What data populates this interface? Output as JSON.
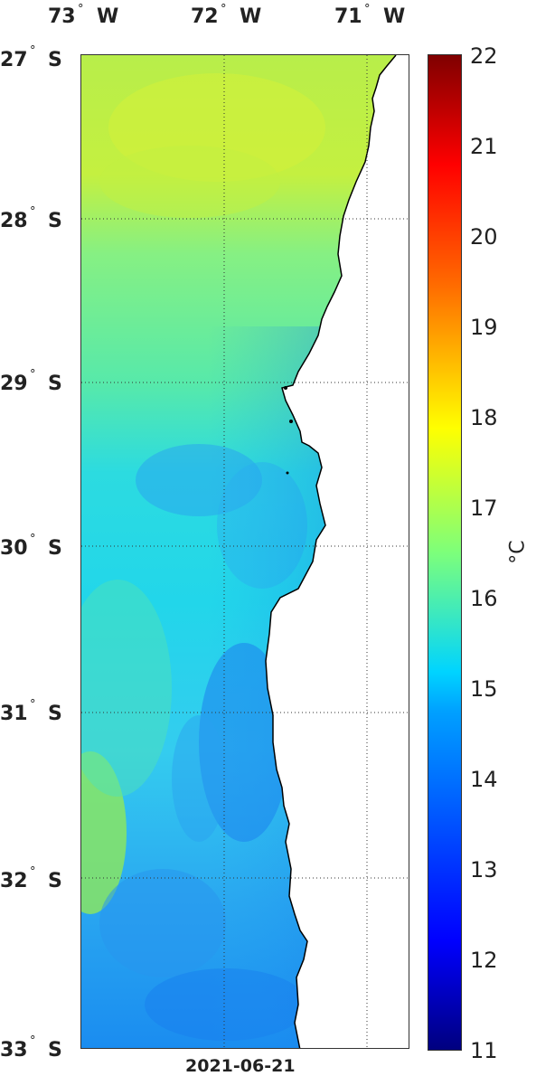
{
  "map": {
    "variable_unit": "°C",
    "date": "2021-06-21",
    "lon_ticks": [
      {
        "value": -73,
        "number": "73",
        "deg": "°",
        "hemi": "W"
      },
      {
        "value": -72,
        "number": "72",
        "deg": "°",
        "hemi": "W"
      },
      {
        "value": -71,
        "number": "71",
        "deg": "°",
        "hemi": "W"
      }
    ],
    "lat_ticks": [
      {
        "value": -27,
        "number": "27",
        "deg": "°",
        "hemi": "S"
      },
      {
        "value": -28,
        "number": "28",
        "deg": "°",
        "hemi": "S"
      },
      {
        "value": -29,
        "number": "29",
        "deg": "°",
        "hemi": "S"
      },
      {
        "value": -30,
        "number": "30",
        "deg": "°",
        "hemi": "S"
      },
      {
        "value": -31,
        "number": "31",
        "deg": "°",
        "hemi": "S"
      },
      {
        "value": -32,
        "number": "32",
        "deg": "°",
        "hemi": "S"
      },
      {
        "value": -33,
        "number": "33",
        "deg": "°",
        "hemi": "S"
      }
    ],
    "colorbar": {
      "min": 11,
      "max": 22,
      "ticks": [
        "22",
        "21",
        "20",
        "19",
        "18",
        "17",
        "16",
        "15",
        "14",
        "13",
        "12",
        "11"
      ],
      "colormap": "jet"
    },
    "grid": "dotted",
    "land_color": "#ffffff",
    "coastline_color": "#000000"
  }
}
